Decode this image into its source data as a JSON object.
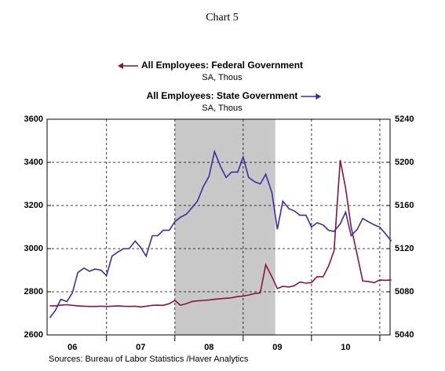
{
  "chart_data": {
    "type": "line",
    "title": "Chart 5",
    "source": "Sources:  Bureau of Labor Statistics /Haver Analytics",
    "xlim": [
      2006.13,
      2011.15
    ],
    "xticks": [
      {
        "value": 2006.5,
        "label": "06"
      },
      {
        "value": 2007.5,
        "label": "07"
      },
      {
        "value": 2008.5,
        "label": "08"
      },
      {
        "value": 2009.5,
        "label": "09"
      },
      {
        "value": 2010.5,
        "label": "10"
      }
    ],
    "xgrid": [
      2007,
      2008,
      2009,
      2010,
      2011
    ],
    "shade": [
      2008.0,
      2009.47
    ],
    "shade_color": "#c8c8c8",
    "ylim": [
      2600,
      3600
    ],
    "yticks": [
      2600,
      2800,
      3000,
      3200,
      3400,
      3600
    ],
    "y2lim": [
      5040,
      5240
    ],
    "y2ticks": [
      5040,
      5080,
      5120,
      5160,
      5200,
      5240
    ],
    "grid": true,
    "x": [
      2006.17,
      2006.25,
      2006.33,
      2006.42,
      2006.5,
      2006.58,
      2006.67,
      2006.75,
      2006.83,
      2006.92,
      2007.0,
      2007.08,
      2007.17,
      2007.25,
      2007.33,
      2007.42,
      2007.5,
      2007.58,
      2007.67,
      2007.75,
      2007.83,
      2007.92,
      2008.0,
      2008.08,
      2008.17,
      2008.25,
      2008.33,
      2008.42,
      2008.5,
      2008.58,
      2008.67,
      2008.75,
      2008.83,
      2008.92,
      2009.0,
      2009.08,
      2009.17,
      2009.25,
      2009.33,
      2009.42,
      2009.5,
      2009.58,
      2009.67,
      2009.75,
      2009.83,
      2009.92,
      2010.0,
      2010.08,
      2010.17,
      2010.25,
      2010.33,
      2010.42,
      2010.5,
      2010.58,
      2010.67,
      2010.75,
      2010.83,
      2010.92,
      2011.0,
      2011.08,
      2011.17
    ],
    "series": [
      {
        "name": "All Employees: Federal Government",
        "unit": "SA, Thous",
        "color": "#8a1538",
        "axis": "y",
        "legend_arrow": "left",
        "values": [
          2735,
          2735,
          2738,
          2740,
          2737,
          2735,
          2733,
          2732,
          2732,
          2733,
          2732,
          2733,
          2735,
          2733,
          2732,
          2733,
          2730,
          2733,
          2737,
          2738,
          2737,
          2745,
          2760,
          2738,
          2745,
          2755,
          2758,
          2760,
          2762,
          2765,
          2768,
          2770,
          2772,
          2778,
          2780,
          2785,
          2792,
          2795,
          2925,
          2870,
          2815,
          2825,
          2822,
          2828,
          2845,
          2840,
          2842,
          2870,
          2870,
          2920,
          2990,
          3410,
          3280,
          3100,
          2970,
          2850,
          2848,
          2842,
          2855,
          2853,
          2855
        ]
      },
      {
        "name": "All Employees: State Government",
        "unit": "SA, Thous",
        "color": "#3d2ea0",
        "axis": "y2",
        "legend_arrow": "right",
        "values": [
          5056,
          5062.5,
          5073,
          5071,
          5079,
          5098,
          5102,
          5099,
          5101,
          5100,
          5095,
          5113,
          5117,
          5120,
          5120,
          5127,
          5121,
          5113,
          5132,
          5132,
          5137,
          5137,
          5145,
          5149,
          5152,
          5158,
          5164,
          5178,
          5187,
          5210,
          5196,
          5186,
          5191,
          5191,
          5205,
          5186,
          5182,
          5180,
          5189,
          5172,
          5138,
          5164,
          5157,
          5155,
          5151,
          5151,
          5140,
          5144,
          5142,
          5137,
          5136,
          5143,
          5154,
          5132,
          5138,
          5148,
          5145,
          5142,
          5140,
          5134,
          5127
        ]
      }
    ]
  }
}
